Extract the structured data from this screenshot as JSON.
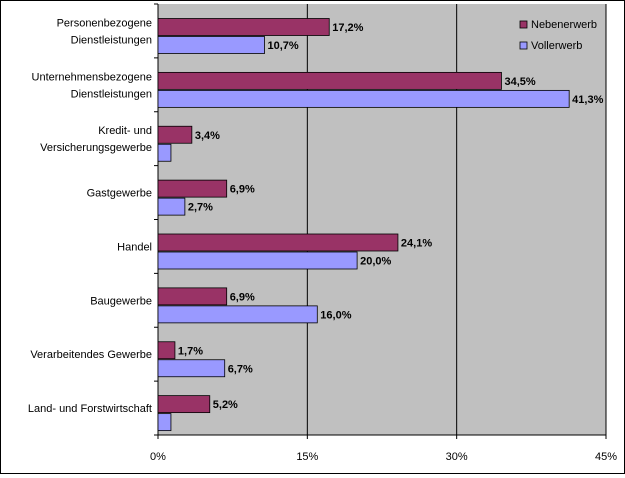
{
  "chart_data": {
    "type": "bar",
    "orientation": "horizontal",
    "categories": [
      [
        "Personenbezogene",
        "Dienstleistungen"
      ],
      [
        "Unternehmensbezogene",
        "Dienstleistungen"
      ],
      [
        "Kredit- und",
        "Versicherungsgewerbe"
      ],
      [
        "Gastgewerbe"
      ],
      [
        "Handel"
      ],
      [
        "Baugewerbe"
      ],
      [
        "Verarbeitendes Gewerbe"
      ],
      [
        "Land- und Forstwirtschaft"
      ]
    ],
    "series": [
      {
        "name": "Nebenerwerb",
        "color": "#993366",
        "values": [
          17.2,
          34.5,
          3.4,
          6.9,
          24.1,
          6.9,
          1.7,
          5.2
        ],
        "labels": [
          "17,2%",
          "34,5%",
          "3,4%",
          "6,9%",
          "24,1%",
          "6,9%",
          "1,7%",
          "5,2%"
        ]
      },
      {
        "name": "Vollerwerb",
        "color": "#9999ff",
        "values": [
          10.7,
          41.3,
          1.3,
          2.7,
          20.0,
          16.0,
          6.7,
          1.3
        ],
        "labels": [
          "10,7%",
          "41,3%",
          "",
          "2,7%",
          "20,0%",
          "16,0%",
          "6,7%",
          ""
        ]
      }
    ],
    "xlim": [
      0,
      45
    ],
    "xticks": [
      0,
      15,
      30,
      45
    ],
    "xtick_labels": [
      "0%",
      "15%",
      "30%",
      "45%"
    ],
    "grid": true,
    "plot_background": "#c0c0c0",
    "legend_position": "top-right"
  }
}
